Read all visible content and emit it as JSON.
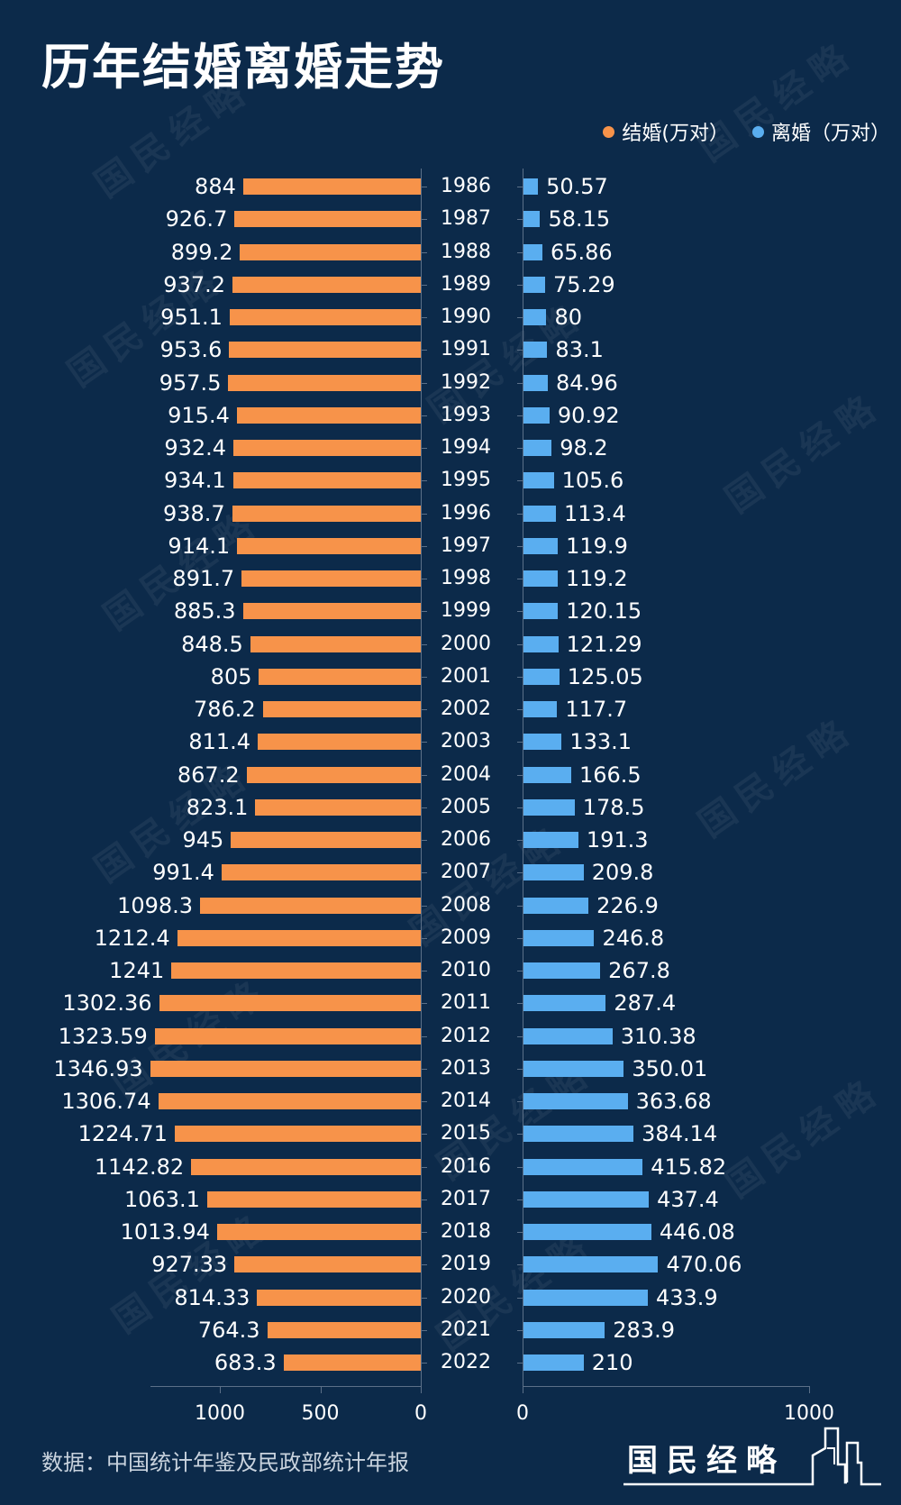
{
  "title": "历年结婚离婚走势",
  "legend": [
    {
      "label": "结婚(万对）",
      "color": "#f7934a"
    },
    {
      "label": "离婚（万对）",
      "color": "#5aaef0"
    }
  ],
  "source": "数据：中国统计年鉴及民政部统计年报",
  "logo": {
    "text": "国民经略"
  },
  "watermark_text": "国民经略",
  "colors": {
    "background": "#0c2a4a",
    "marriage": "#f7934a",
    "divorce": "#5aaef0",
    "axis": "#5c7088",
    "text": "#ffffff"
  },
  "chart_data": {
    "type": "bar",
    "orientation": "horizontal-butterfly",
    "title": "历年结婚离婚走势",
    "categories": [
      "1986",
      "1987",
      "1988",
      "1989",
      "1990",
      "1991",
      "1992",
      "1993",
      "1994",
      "1995",
      "1996",
      "1997",
      "1998",
      "1999",
      "2000",
      "2001",
      "2002",
      "2003",
      "2004",
      "2005",
      "2006",
      "2007",
      "2008",
      "2009",
      "2010",
      "2011",
      "2012",
      "2013",
      "2014",
      "2015",
      "2016",
      "2017",
      "2018",
      "2019",
      "2020",
      "2021",
      "2022"
    ],
    "series": [
      {
        "name": "结婚(万对）",
        "side": "left",
        "values": [
          884,
          926.7,
          899.2,
          937.2,
          951.1,
          953.6,
          957.5,
          915.4,
          932.4,
          934.1,
          938.7,
          914.1,
          891.7,
          885.3,
          848.5,
          805,
          786.2,
          811.4,
          867.2,
          823.1,
          945,
          991.4,
          1098.3,
          1212.4,
          1241,
          1302.36,
          1323.59,
          1346.93,
          1306.74,
          1224.71,
          1142.82,
          1063.1,
          1013.94,
          927.33,
          814.33,
          764.3,
          683.3
        ]
      },
      {
        "name": "离婚（万对）",
        "side": "right",
        "values": [
          50.57,
          58.15,
          65.86,
          75.29,
          80,
          83.1,
          84.96,
          90.92,
          98.2,
          105.6,
          113.4,
          119.9,
          119.2,
          120.15,
          121.29,
          125.05,
          117.7,
          133.1,
          166.5,
          178.5,
          191.3,
          209.8,
          226.9,
          246.8,
          267.8,
          287.4,
          310.38,
          350.01,
          363.68,
          384.14,
          415.82,
          437.4,
          446.08,
          470.06,
          433.9,
          283.9,
          210
        ]
      }
    ],
    "labels_left": [
      "884",
      "926.7",
      "899.2",
      "937.2",
      "951.1",
      "953.6",
      "957.5",
      "915.4",
      "932.4",
      "934.1",
      "938.7",
      "914.1",
      "891.7",
      "885.3",
      "848.5",
      "805",
      "786.2",
      "811.4",
      "867.2",
      "823.1",
      "945",
      "991.4",
      "1098.3",
      "1212.4",
      "1241",
      "1302.36",
      "1323.59",
      "1346.93",
      "1306.74",
      "1224.71",
      "1142.82",
      "1063.1",
      "1013.94",
      "927.33",
      "814.33",
      "764.3",
      "683.3"
    ],
    "labels_right": [
      "50.57",
      "58.15",
      "65.86",
      "75.29",
      "80",
      "83.1",
      "84.96",
      "90.92",
      "98.2",
      "105.6",
      "113.4",
      "119.9",
      "119.2",
      "120.15",
      "121.29",
      "125.05",
      "117.7",
      "133.1",
      "166.5",
      "178.5",
      "191.3",
      "209.8",
      "226.9",
      "246.8",
      "267.8",
      "287.4",
      "310.38",
      "350.01",
      "363.68",
      "384.14",
      "415.82",
      "437.4",
      "446.08",
      "470.06",
      "433.9",
      "283.9",
      "210"
    ],
    "left_axis": {
      "ticks": [
        "1000",
        "500",
        "0"
      ],
      "tick_values": [
        1000,
        500,
        0
      ],
      "reversed": true
    },
    "right_axis": {
      "ticks": [
        "0",
        "1000"
      ],
      "tick_values": [
        0,
        1000
      ],
      "range": [
        0,
        1000
      ]
    },
    "xlabel": "",
    "ylabel": "",
    "grid": false,
    "legend_position": "top-right"
  }
}
